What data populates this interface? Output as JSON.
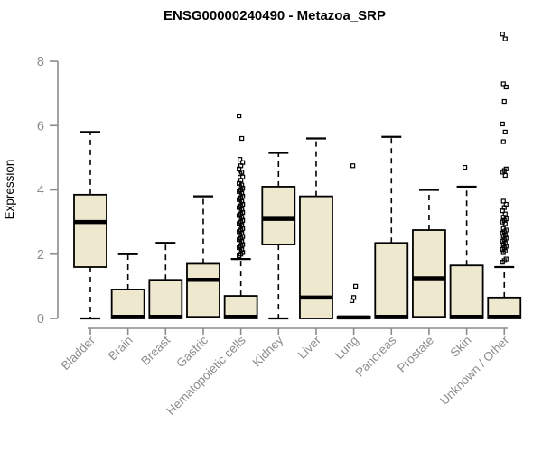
{
  "colors": {
    "box_fill": "#EDE8CE",
    "box_border": "#000000",
    "median": "#000000",
    "whisker": "#000000",
    "outlier": "#000000",
    "axis": "#8C8C8C",
    "tick_label": "#8C8C8C",
    "title": "#000000",
    "background": "#FFFFFF"
  },
  "chart_data": {
    "type": "boxplot",
    "title": "ENSG00000240490 - Metazoa_SRP",
    "xlabel": "",
    "ylabel": "Expression",
    "ylim": [
      0,
      9
    ],
    "yticks": [
      0,
      2,
      4,
      6,
      8
    ],
    "grid": false,
    "legend": false,
    "categories": [
      "Bladder",
      "Brain",
      "Breast",
      "Gastric",
      "Hematopoietic cells",
      "Kidney",
      "Liver",
      "Lung",
      "Pancreas",
      "Prostate",
      "Skin",
      "Unknown / Other"
    ],
    "series": [
      {
        "name": "Bladder",
        "whisker_low": 0,
        "q1": 1.6,
        "median": 3.0,
        "q3": 3.85,
        "whisker_high": 5.8,
        "outliers": []
      },
      {
        "name": "Brain",
        "whisker_low": 0,
        "q1": 0,
        "median": 0.05,
        "q3": 0.9,
        "whisker_high": 2.0,
        "outliers": []
      },
      {
        "name": "Breast",
        "whisker_low": 0,
        "q1": 0,
        "median": 0.05,
        "q3": 1.2,
        "whisker_high": 2.35,
        "outliers": []
      },
      {
        "name": "Gastric",
        "whisker_low": 0.05,
        "q1": 0.05,
        "median": 1.2,
        "q3": 1.7,
        "whisker_high": 3.8,
        "outliers": []
      },
      {
        "name": "Hematopoietic cells",
        "whisker_low": 0,
        "q1": 0,
        "median": 0.05,
        "q3": 0.7,
        "whisker_high": 1.85,
        "outliers": [
          1.95,
          2,
          2.05,
          2.1,
          2.15,
          2.2,
          2.25,
          2.3,
          2.35,
          2.4,
          2.45,
          2.5,
          2.55,
          2.6,
          2.65,
          2.7,
          2.75,
          2.8,
          2.85,
          2.9,
          2.95,
          3,
          3.05,
          3.1,
          3.15,
          3.2,
          3.25,
          3.3,
          3.35,
          3.4,
          3.45,
          3.5,
          3.55,
          3.6,
          3.65,
          3.7,
          3.75,
          3.8,
          3.85,
          3.9,
          3.95,
          4,
          4.05,
          4.1,
          4.15,
          4.2,
          4.3,
          4.4,
          4.5,
          4.55,
          4.65,
          4.75,
          4.85,
          4.95,
          5.6,
          6.3
        ]
      },
      {
        "name": "Kidney",
        "whisker_low": 0,
        "q1": 2.3,
        "median": 3.1,
        "q3": 4.1,
        "whisker_high": 5.15,
        "outliers": []
      },
      {
        "name": "Liver",
        "whisker_low": 0,
        "q1": 0,
        "median": 0.65,
        "q3": 3.8,
        "whisker_high": 5.6,
        "outliers": []
      },
      {
        "name": "Lung",
        "whisker_low": 0,
        "q1": 0,
        "median": 0.03,
        "q3": 0.06,
        "whisker_high": 0.06,
        "outliers": [
          0.55,
          0.65,
          1.0,
          4.75
        ]
      },
      {
        "name": "Pancreas",
        "whisker_low": 0,
        "q1": 0,
        "median": 0.05,
        "q3": 2.35,
        "whisker_high": 5.65,
        "outliers": []
      },
      {
        "name": "Prostate",
        "whisker_low": 0.05,
        "q1": 0.05,
        "median": 1.25,
        "q3": 2.75,
        "whisker_high": 4.0,
        "outliers": []
      },
      {
        "name": "Skin",
        "whisker_low": 0,
        "q1": 0,
        "median": 0.05,
        "q3": 1.65,
        "whisker_high": 4.1,
        "outliers": [
          4.7
        ]
      },
      {
        "name": "Unknown / Other",
        "whisker_low": 0,
        "q1": 0,
        "median": 0.05,
        "q3": 0.65,
        "whisker_high": 1.6,
        "outliers": [
          1.75,
          1.8,
          1.85,
          2.05,
          2.1,
          2.15,
          2.2,
          2.25,
          2.3,
          2.35,
          2.4,
          2.45,
          2.5,
          2.55,
          2.6,
          2.65,
          2.7,
          2.75,
          2.8,
          2.95,
          3,
          3.05,
          3.1,
          3.15,
          3.25,
          3.35,
          3.45,
          3.55,
          3.65,
          4.45,
          4.55,
          4.6,
          4.65,
          5.5,
          5.8,
          6.05,
          6.75,
          7.2,
          7.3,
          8.7,
          8.85
        ]
      }
    ]
  }
}
